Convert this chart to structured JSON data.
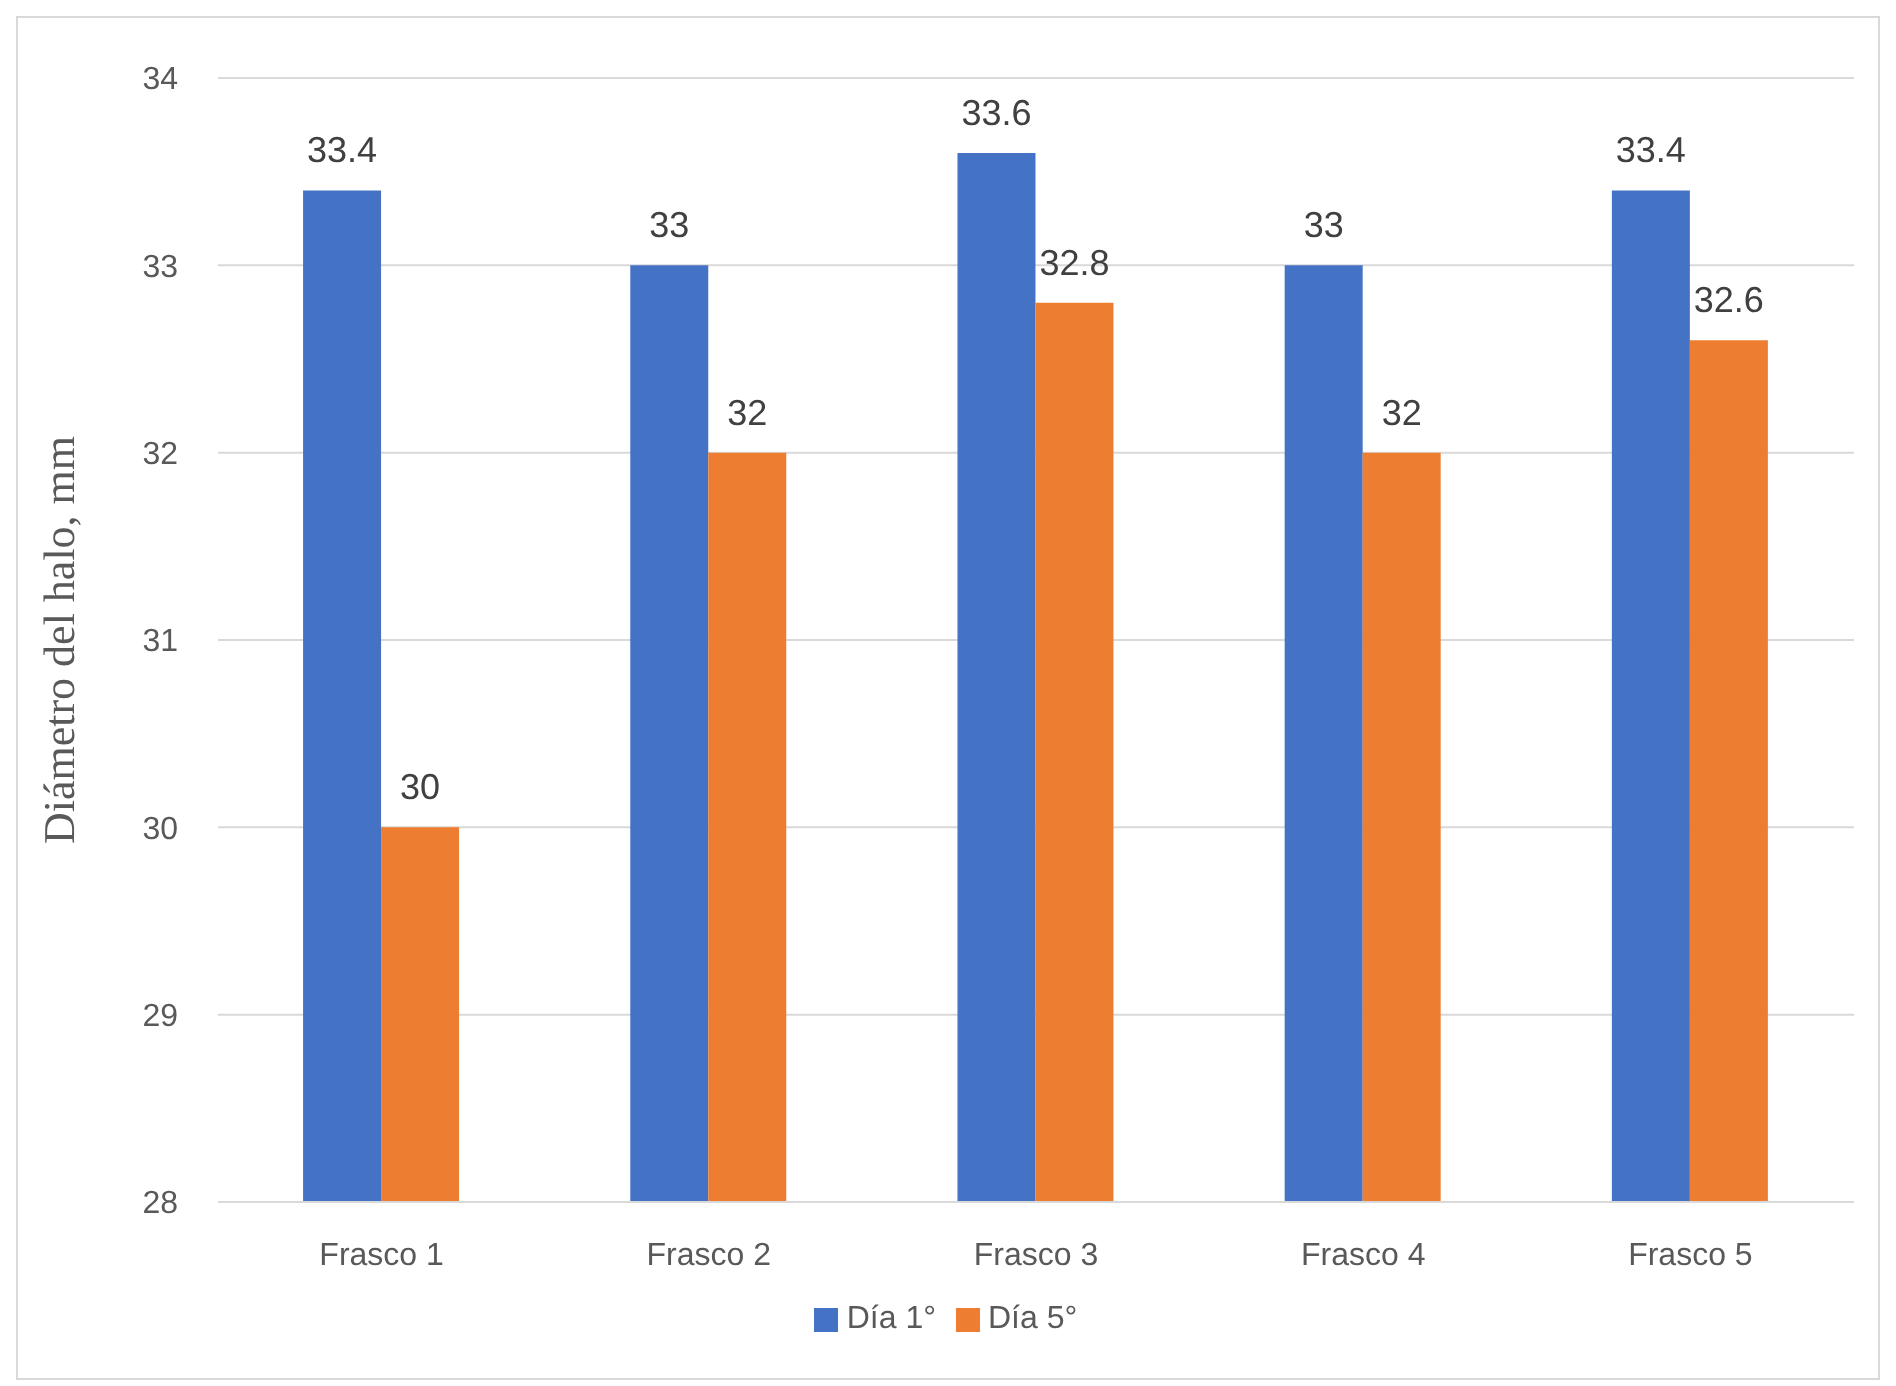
{
  "chart_data": {
    "type": "bar",
    "ylabel": "Diámetro del halo, mm",
    "categories": [
      "Frasco 1",
      "Frasco 2",
      "Frasco 3",
      "Frasco 4",
      "Frasco 5"
    ],
    "series": [
      {
        "name": "Día 1°",
        "color": "#4472c4",
        "values": [
          33.4,
          33,
          33.6,
          33,
          33.4
        ]
      },
      {
        "name": "Día 5°",
        "color": "#ed7d31",
        "values": [
          30,
          32,
          32.8,
          32,
          32.6
        ]
      }
    ],
    "ylim": [
      28,
      34
    ],
    "yticks": [
      28,
      29,
      30,
      31,
      32,
      33,
      34
    ],
    "grid": "y",
    "legend": "bottom",
    "data_labels": true
  }
}
